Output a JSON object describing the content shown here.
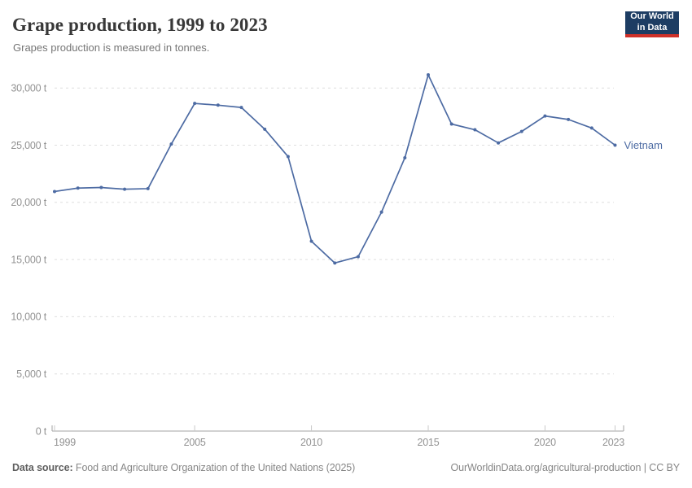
{
  "header": {
    "title": "Grape production, 1999 to 2023",
    "subtitle": "Grapes production is measured in tonnes."
  },
  "logo": {
    "line1": "Our World",
    "line2": "in Data",
    "bg_color": "#1d3d63",
    "accent_color": "#cf3129"
  },
  "chart_data": {
    "type": "line",
    "title": "Grape production, 1999 to 2023",
    "ylabel": "",
    "xlabel": "",
    "unit": "t",
    "grid": "dashed-horizontal",
    "legend_position": "line-end-label",
    "x": [
      1999,
      2000,
      2001,
      2002,
      2003,
      2004,
      2005,
      2006,
      2007,
      2008,
      2009,
      2010,
      2011,
      2012,
      2013,
      2014,
      2015,
      2016,
      2017,
      2018,
      2019,
      2020,
      2021,
      2022,
      2023
    ],
    "series": [
      {
        "name": "Vietnam",
        "color": "#4d6ba3",
        "values": [
          20950,
          21250,
          21300,
          21150,
          21200,
          25100,
          28650,
          28500,
          28300,
          26400,
          24000,
          16600,
          14700,
          15250,
          19150,
          23900,
          31150,
          26850,
          26350,
          25200,
          26200,
          27550,
          27250,
          26500,
          25000
        ]
      }
    ],
    "xticks": [
      1999,
      2005,
      2010,
      2015,
      2020,
      2023
    ],
    "yticks": [
      0,
      5000,
      10000,
      15000,
      20000,
      25000,
      30000
    ],
    "ytick_suffix": " t",
    "ylim": [
      0,
      31800
    ]
  },
  "footer": {
    "source_label": "Data source:",
    "source_text": "Food and Agriculture Organization of the United Nations (2025)",
    "credit": "OurWorldinData.org/agricultural-production | CC BY"
  }
}
